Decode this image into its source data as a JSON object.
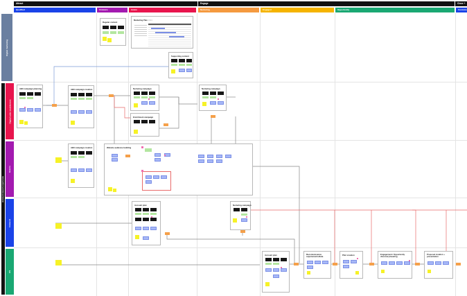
{
  "top_groups": [
    {
      "label": "Attract"
    },
    {
      "label": "Engage"
    },
    {
      "label": "Close + …"
    }
  ],
  "stages": [
    {
      "label": "Qualified",
      "color": "#1a43e8"
    },
    {
      "label": "Unaware",
      "color": "#a31ab0"
    },
    {
      "label": "Aware",
      "color": "#e8154d"
    },
    {
      "label": "Nurturing",
      "color": "#f59a40"
    },
    {
      "label": "Engaged",
      "color": "#f5b400"
    },
    {
      "label": "Opportunity",
      "color": "#1aa873"
    },
    {
      "label": "Customer",
      "color": "#1a43e8"
    }
  ],
  "lanes": [
    {
      "label": "Digital marketing",
      "color": "#6a7fa0"
    },
    {
      "label": "Digital sales enablement",
      "color": "#e8154d"
    },
    {
      "label": "Events",
      "color": "#a31ab0"
    },
    {
      "label": "Inbound",
      "color": "#1a43e8"
    },
    {
      "label": "CS",
      "color": "#1aa873"
    }
  ],
  "section_label": "Account-based experience",
  "cards": {
    "regular_content": "Regular content",
    "marketing_plan": "Marketing Plan",
    "marketing_plan_suffix": "2024",
    "supporting_content": "Supporting content",
    "abx_campaign_planning": "ABX campaign planning",
    "abx_campaign_creation": "ABX campaign creation",
    "nurturing_campaign": "Nurturing campaign",
    "nurturing_campaign_2": "Nurturing campaign",
    "first_touch_campaign": "Enrichment campaign",
    "abx_campaign_creation_2": "ABX campaign creation",
    "website_audience_building": "Website audience building",
    "account_plan": "Account plan",
    "nurturing_campaign_3": "Nurturing campaign",
    "account_plan_2": "Account plan",
    "reconnaissance": "Reconnaissance requirements/data",
    "pilot_creation": "Pilot creation",
    "engagement_opportunity": "Engagement / Opportunity discovery/meeting",
    "proposal_creation": "Proposal creation + presentation"
  }
}
